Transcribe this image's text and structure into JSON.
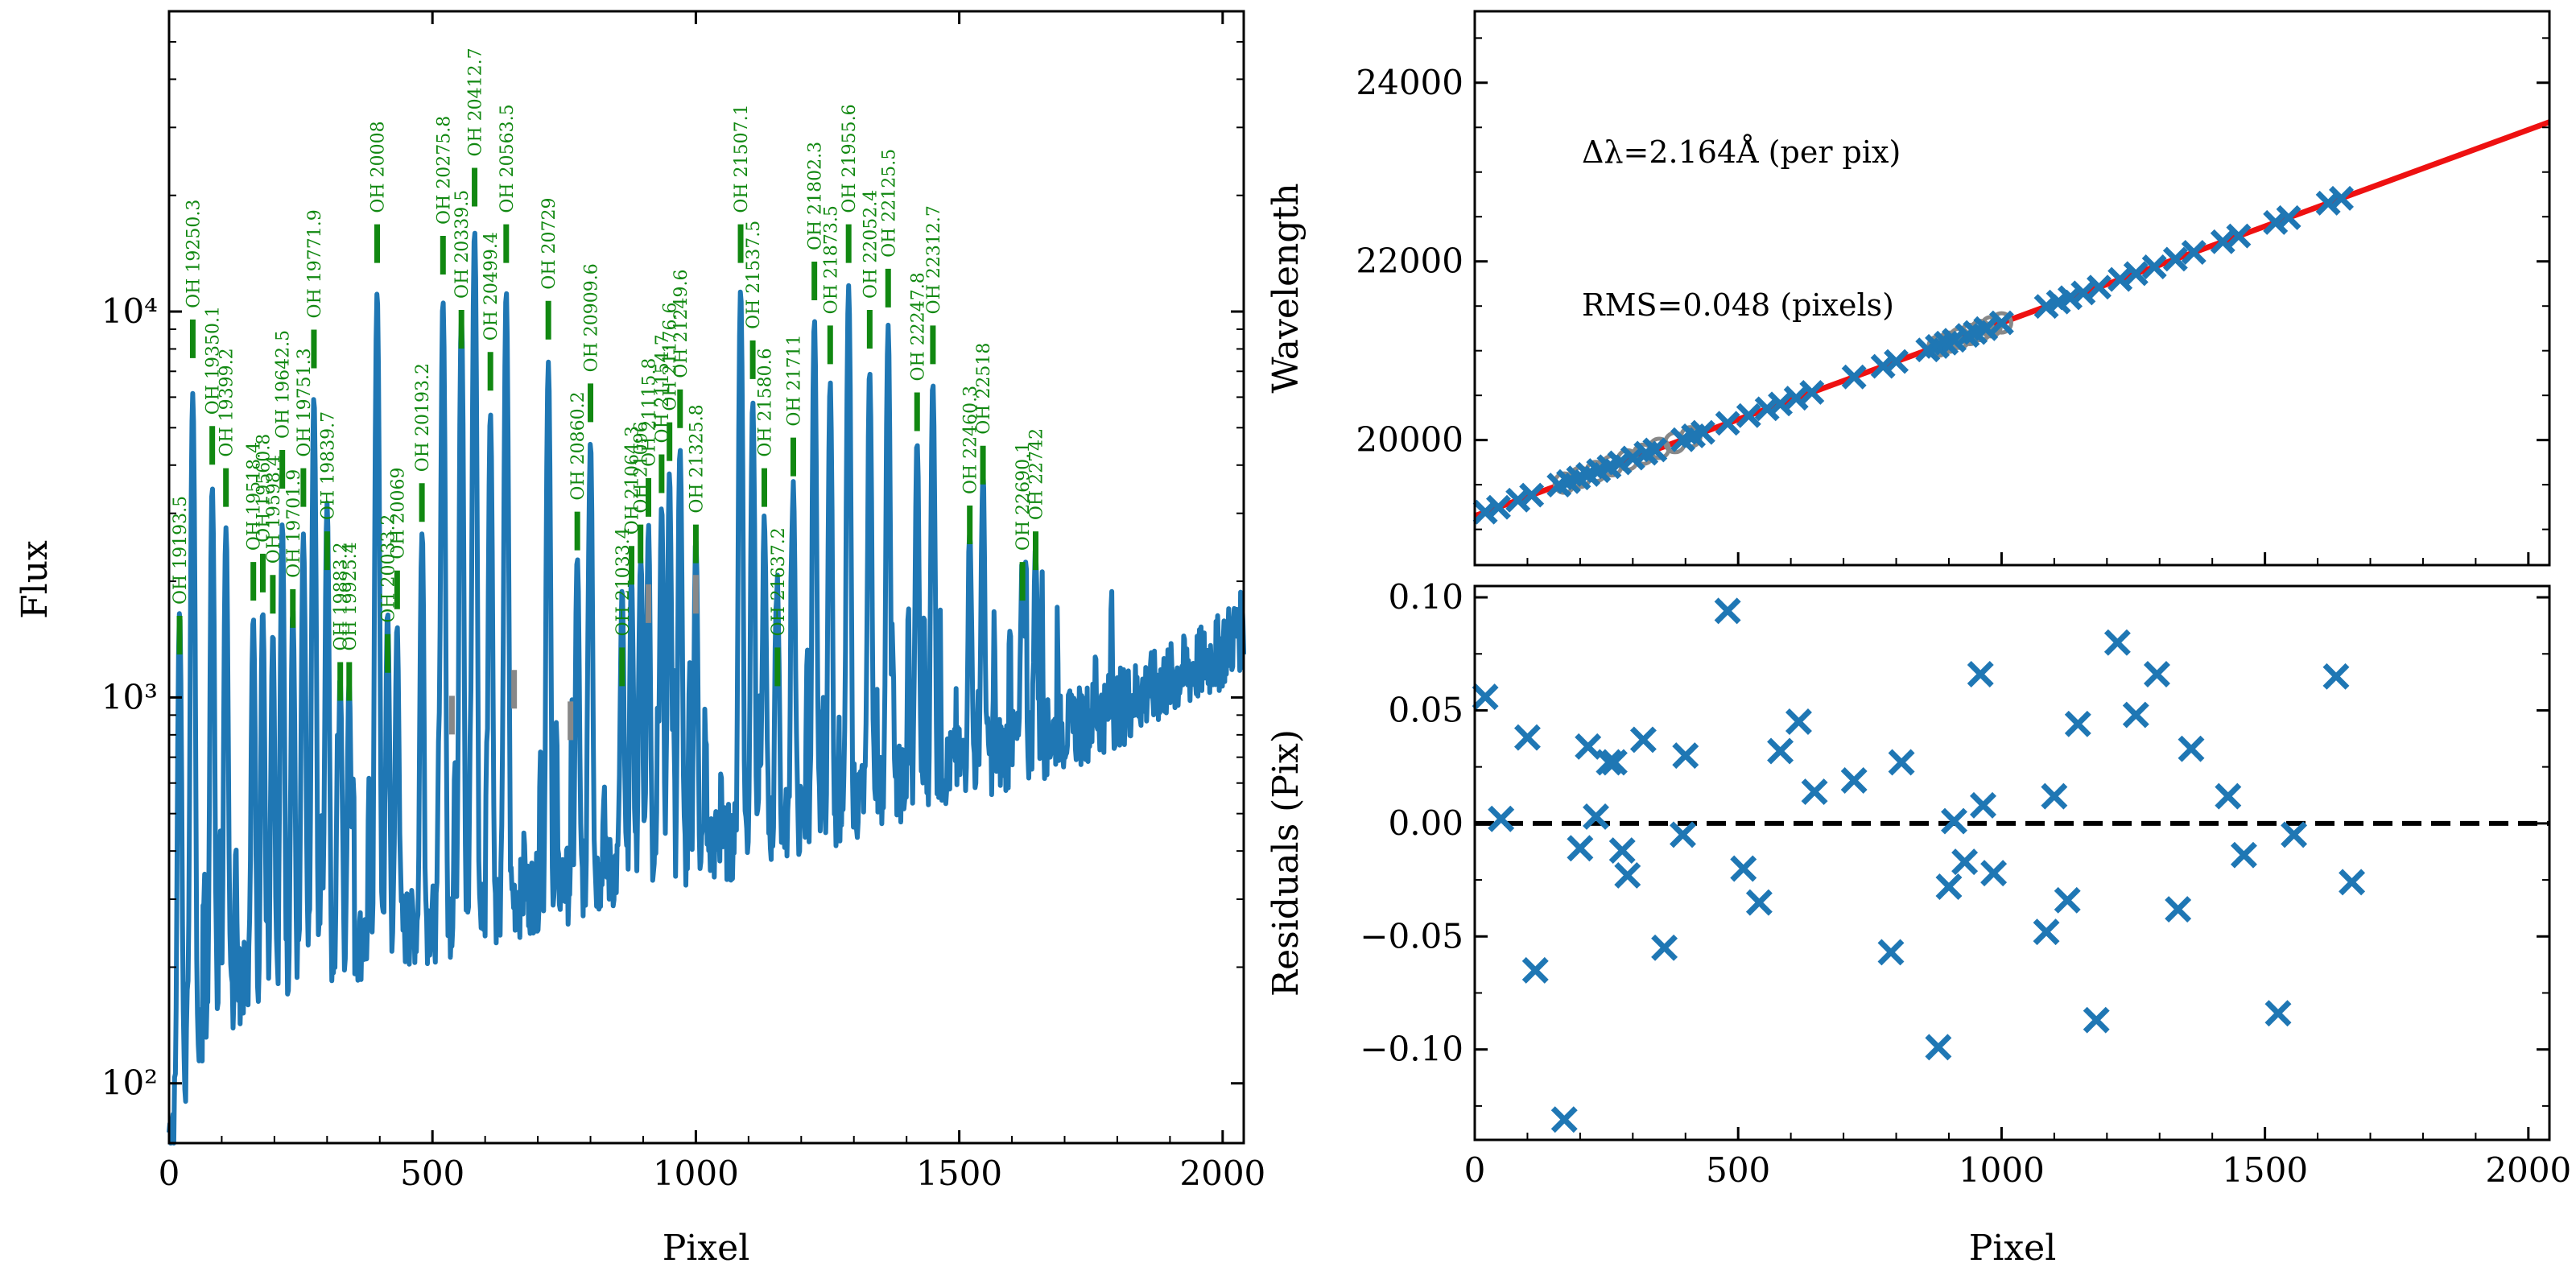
{
  "figure": {
    "panels": [
      "spectrum",
      "wavelength-fit",
      "residuals"
    ]
  },
  "chart_data": [
    {
      "id": "spectrum",
      "type": "line",
      "xlabel": "Pixel",
      "ylabel": "Flux",
      "xlim": [
        0,
        2040
      ],
      "ylim": [
        70,
        60000
      ],
      "yscale": "log",
      "xticks": [
        0,
        500,
        1000,
        1500,
        2000
      ],
      "yticks": [
        {
          "value": 100,
          "label": "10²"
        },
        {
          "value": 1000,
          "label": "10³"
        },
        {
          "value": 10000,
          "label": "10⁴"
        }
      ],
      "line_color": "#1f77b4",
      "marker_color": "#118811",
      "label_color": "#118811",
      "baseline_points": [
        [
          0,
          70
        ],
        [
          30,
          105
        ],
        [
          80,
          150
        ],
        [
          150,
          180
        ],
        [
          250,
          200
        ],
        [
          400,
          230
        ],
        [
          550,
          260
        ],
        [
          700,
          300
        ],
        [
          850,
          340
        ],
        [
          1000,
          380
        ],
        [
          1100,
          420
        ],
        [
          1200,
          460
        ],
        [
          1300,
          520
        ],
        [
          1400,
          580
        ],
        [
          1500,
          640
        ],
        [
          1600,
          700
        ],
        [
          1700,
          780
        ],
        [
          1800,
          900
        ],
        [
          1900,
          1050
        ],
        [
          1980,
          1200
        ],
        [
          2040,
          1450
        ]
      ],
      "lines": [
        {
          "label": "OH 19193.5",
          "pixel": 20,
          "peak": 1600,
          "marker": 1450
        },
        {
          "label": "OH 19250.3",
          "pixel": 45,
          "peak": 6000,
          "marker": 8500
        },
        {
          "label": "OH 19350.1",
          "pixel": 82,
          "peak": 3400,
          "marker": 4500
        },
        {
          "label": "OH 19399.2",
          "pixel": 108,
          "peak": 2600,
          "marker": 3500
        },
        {
          "label": "OH 19518.4",
          "pixel": 160,
          "peak": 1400,
          "marker": 2000
        },
        {
          "label": "OH 19560.8",
          "pixel": 178,
          "peak": 1500,
          "marker": 2100
        },
        {
          "label": "OH 19598.4",
          "pixel": 197,
          "peak": 1300,
          "marker": 1850
        },
        {
          "label": "OH 19642.5",
          "pixel": 215,
          "peak": 2600,
          "marker": 3900
        },
        {
          "label": "OH 19701.9",
          "pixel": 235,
          "peak": 1500,
          "marker": 1700
        },
        {
          "label": "OH 19751.3",
          "pixel": 255,
          "peak": 2400,
          "marker": 3500
        },
        {
          "label": "OH 19771.9",
          "pixel": 275,
          "peak": 5800,
          "marker": 8000
        },
        {
          "label": "OH 19839.7",
          "pixel": 300,
          "peak": 3000,
          "marker": 2400
        },
        {
          "label": "OH 19883.2",
          "pixel": 325,
          "peak": 900,
          "marker": 1100
        },
        {
          "label": "OH 19925.4",
          "pixel": 342,
          "peak": 900,
          "marker": 1100
        },
        {
          "label": "OH 20008",
          "pixel": 395,
          "peak": 11000,
          "marker": 15000
        },
        {
          "label": "OH 20033.2",
          "pixel": 415,
          "peak": 1400,
          "marker": 1300
        },
        {
          "label": "OH 20069",
          "pixel": 433,
          "peak": 1300,
          "marker": 1900
        },
        {
          "label": "OH 20193.2",
          "pixel": 480,
          "peak": 2300,
          "marker": 3200
        },
        {
          "label": "OH 20275.8",
          "pixel": 520,
          "peak": 10500,
          "marker": 14000
        },
        {
          "label": "OH 20339.5",
          "pixel": 555,
          "peak": 9500,
          "marker": 9000
        },
        {
          "label": "OH 20412.7",
          "pixel": 580,
          "peak": 16000,
          "marker": 21000
        },
        {
          "label": "OH 20499.4",
          "pixel": 610,
          "peak": 5200,
          "marker": 7000
        },
        {
          "label": "OH 20563.5",
          "pixel": 640,
          "peak": 11000,
          "marker": 15000
        },
        {
          "label": "OH 20729",
          "pixel": 720,
          "peak": 7000,
          "marker": 9500
        },
        {
          "label": "OH 20860.2",
          "pixel": 775,
          "peak": 2000,
          "marker": 2700
        },
        {
          "label": "OH 20909.6",
          "pixel": 800,
          "peak": 4300,
          "marker": 5800
        },
        {
          "label": "OH 21033.4",
          "pixel": 860,
          "peak": 1500,
          "marker": 1200
        },
        {
          "label": "OH 21064.3",
          "pixel": 878,
          "peak": 1700,
          "marker": 2200
        },
        {
          "label": "OH 21096",
          "pixel": 895,
          "peak": 1900,
          "marker": 2500
        },
        {
          "label": "OH 21115.8",
          "pixel": 910,
          "peak": 2400,
          "marker": 3300
        },
        {
          "label": "OH 21154.7",
          "pixel": 935,
          "peak": 2800,
          "marker": 3800
        },
        {
          "label": "OH 21176.6",
          "pixel": 950,
          "peak": 3400,
          "marker": 4600
        },
        {
          "label": "OH 21249.6",
          "pixel": 970,
          "peak": 4100,
          "marker": 5600
        },
        {
          "label": "OH 21325.8",
          "pixel": 1000,
          "peak": 2200,
          "marker": 2500
        },
        {
          "label": "OH 21507.1",
          "pixel": 1085,
          "peak": 11000,
          "marker": 15000
        },
        {
          "label": "OH 21537.5",
          "pixel": 1108,
          "peak": 5500,
          "marker": 7500
        },
        {
          "label": "OH 21580.6",
          "pixel": 1130,
          "peak": 2500,
          "marker": 3500
        },
        {
          "label": "OH 21637.2",
          "pixel": 1155,
          "peak": 1500,
          "marker": 1200
        },
        {
          "label": "OH 21711",
          "pixel": 1185,
          "peak": 3100,
          "marker": 4200
        },
        {
          "label": "OH 21802.3",
          "pixel": 1225,
          "peak": 9000,
          "marker": 12000
        },
        {
          "label": "OH 21873.5",
          "pixel": 1255,
          "peak": 6000,
          "marker": 8200
        },
        {
          "label": "OH 21955.6",
          "pixel": 1290,
          "peak": 11000,
          "marker": 15000
        },
        {
          "label": "OH 22052.4",
          "pixel": 1330,
          "peak": 6500,
          "marker": 9000
        },
        {
          "label": "OH 22125.5",
          "pixel": 1365,
          "peak": 8500,
          "marker": 11500
        },
        {
          "label": "OH 22247.8",
          "pixel": 1420,
          "peak": 4000,
          "marker": 5500
        },
        {
          "label": "OH 22312.7",
          "pixel": 1450,
          "peak": 6000,
          "marker": 8200
        },
        {
          "label": "OH 22460.3",
          "pixel": 1520,
          "peak": 2100,
          "marker": 2800
        },
        {
          "label": "OH 22518",
          "pixel": 1545,
          "peak": 3100,
          "marker": 4000
        },
        {
          "label": "OH 22690.1",
          "pixel": 1620,
          "peak": 1500,
          "marker": 2000
        },
        {
          "label": "OH 22742",
          "pixel": 1645,
          "peak": 1700,
          "marker": 2400
        }
      ],
      "unmatched_markers": [
        {
          "pixel": 537,
          "value": 900
        },
        {
          "pixel": 655,
          "value": 1050
        },
        {
          "pixel": 762,
          "value": 870
        },
        {
          "pixel": 910,
          "value": 1750
        },
        {
          "pixel": 1000,
          "value": 1850
        }
      ]
    },
    {
      "id": "wavelength-fit",
      "type": "scatter",
      "xlabel": "",
      "ylabel": "Wavelength",
      "xlim": [
        0,
        2040
      ],
      "ylim": [
        18600,
        24800
      ],
      "xticks": [
        0,
        500,
        1000,
        1500,
        2000
      ],
      "yticks": [
        20000,
        22000,
        24000
      ],
      "dispersion": "Δλ=2.164Å (per pix)",
      "rms": "RMS=0.048 (pixels)",
      "fit_line": {
        "color": "#ee1111",
        "x": [
          0,
          2040
        ],
        "y": [
          19150,
          23560
        ]
      },
      "marker_color": "#1f77b4",
      "gray_color": "#888888",
      "points_x": [
        20,
        45,
        82,
        108,
        160,
        178,
        197,
        215,
        235,
        255,
        275,
        300,
        325,
        342,
        395,
        415,
        433,
        480,
        520,
        555,
        580,
        610,
        640,
        720,
        775,
        800,
        860,
        878,
        895,
        910,
        935,
        950,
        970,
        1000,
        1085,
        1108,
        1130,
        1155,
        1185,
        1225,
        1255,
        1290,
        1330,
        1365,
        1420,
        1450,
        1520,
        1545,
        1620,
        1645
      ],
      "gray_points_x": [
        170,
        200,
        230,
        260,
        290,
        320,
        350,
        380,
        410,
        880,
        900,
        920,
        940,
        960,
        980,
        1000
      ]
    },
    {
      "id": "residuals",
      "type": "scatter",
      "xlabel": "Pixel",
      "ylabel": "Residuals (Pix)",
      "xlim": [
        0,
        2040
      ],
      "ylim": [
        -0.14,
        0.105
      ],
      "xticks": [
        0,
        500,
        1000,
        1500,
        2000
      ],
      "yticks": [
        -0.1,
        -0.05,
        0.0,
        0.05,
        0.1
      ],
      "ytick_labels": [
        "−0.10",
        "−0.05",
        "0.00",
        "0.05",
        "0.10"
      ],
      "zero_line": true,
      "marker_color": "#1f77b4",
      "points": [
        [
          20,
          0.056
        ],
        [
          50,
          0.002
        ],
        [
          100,
          0.038
        ],
        [
          115,
          -0.065
        ],
        [
          170,
          -0.131
        ],
        [
          200,
          -0.011
        ],
        [
          215,
          0.034
        ],
        [
          230,
          0.003
        ],
        [
          255,
          0.027
        ],
        [
          265,
          0.027
        ],
        [
          280,
          -0.012
        ],
        [
          290,
          -0.023
        ],
        [
          320,
          0.037
        ],
        [
          360,
          -0.055
        ],
        [
          395,
          -0.005
        ],
        [
          400,
          0.03
        ],
        [
          480,
          0.094
        ],
        [
          510,
          -0.02
        ],
        [
          540,
          -0.035
        ],
        [
          580,
          0.032
        ],
        [
          615,
          0.045
        ],
        [
          645,
          0.014
        ],
        [
          720,
          0.019
        ],
        [
          810,
          0.027
        ],
        [
          790,
          -0.057
        ],
        [
          880,
          -0.099
        ],
        [
          900,
          -0.028
        ],
        [
          910,
          0.001
        ],
        [
          930,
          -0.017
        ],
        [
          960,
          0.066
        ],
        [
          965,
          0.008
        ],
        [
          985,
          -0.022
        ],
        [
          1085,
          -0.048
        ],
        [
          1100,
          0.012
        ],
        [
          1125,
          -0.034
        ],
        [
          1145,
          0.044
        ],
        [
          1180,
          -0.087
        ],
        [
          1220,
          0.08
        ],
        [
          1255,
          0.048
        ],
        [
          1295,
          0.066
        ],
        [
          1335,
          -0.038
        ],
        [
          1360,
          0.033
        ],
        [
          1430,
          0.012
        ],
        [
          1460,
          -0.014
        ],
        [
          1525,
          -0.084
        ],
        [
          1555,
          -0.005
        ],
        [
          1635,
          0.065
        ],
        [
          1665,
          -0.026
        ]
      ]
    }
  ]
}
